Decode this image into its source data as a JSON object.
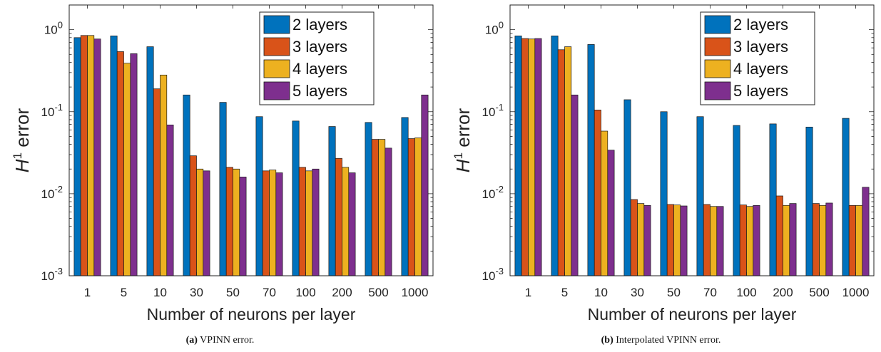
{
  "chart_data": [
    {
      "type": "bar",
      "title": "",
      "xlabel": "Number of neurons per layer",
      "ylabel_base": "H",
      "ylabel_sup": "1",
      "ylabel_word": "error",
      "yscale": "log",
      "ylim": [
        0.001,
        2
      ],
      "y_ticks": [
        {
          "value": 1,
          "mant": "10",
          "exp": "0"
        },
        {
          "value": 0.1,
          "mant": "10",
          "exp": "-1"
        },
        {
          "value": 0.01,
          "mant": "10",
          "exp": "-2"
        },
        {
          "value": 0.001,
          "mant": "10",
          "exp": "-3"
        }
      ],
      "grid": false,
      "legend_position": "top-right",
      "categories": [
        "1",
        "5",
        "10",
        "30",
        "50",
        "70",
        "100",
        "200",
        "500",
        "1000"
      ],
      "series": [
        {
          "name": "2 layers",
          "color": "#0072BD",
          "values": [
            0.8,
            0.84,
            0.62,
            0.16,
            0.13,
            0.087,
            0.077,
            0.066,
            0.074,
            0.085
          ]
        },
        {
          "name": "3 layers",
          "color": "#D95319",
          "values": [
            0.85,
            0.54,
            0.19,
            0.029,
            0.021,
            0.019,
            0.021,
            0.027,
            0.046,
            0.047
          ]
        },
        {
          "name": "4 layers",
          "color": "#EDB120",
          "values": [
            0.85,
            0.39,
            0.28,
            0.02,
            0.02,
            0.0195,
            0.019,
            0.021,
            0.046,
            0.048
          ]
        },
        {
          "name": "5 layers",
          "color": "#7E2F8E",
          "values": [
            0.77,
            0.51,
            0.069,
            0.019,
            0.016,
            0.018,
            0.02,
            0.018,
            0.036,
            0.16
          ]
        }
      ],
      "caption_label": "(a)",
      "caption_text": "VPINN error."
    },
    {
      "type": "bar",
      "title": "",
      "xlabel": "Number of neurons per layer",
      "ylabel_base": "H",
      "ylabel_sup": "1",
      "ylabel_word": "error",
      "yscale": "log",
      "ylim": [
        0.001,
        2
      ],
      "y_ticks": [
        {
          "value": 1,
          "mant": "10",
          "exp": "0"
        },
        {
          "value": 0.1,
          "mant": "10",
          "exp": "-1"
        },
        {
          "value": 0.01,
          "mant": "10",
          "exp": "-2"
        },
        {
          "value": 0.001,
          "mant": "10",
          "exp": "-3"
        }
      ],
      "grid": false,
      "legend_position": "top-right",
      "categories": [
        "1",
        "5",
        "10",
        "30",
        "50",
        "70",
        "100",
        "200",
        "500",
        "1000"
      ],
      "series": [
        {
          "name": "2 layers",
          "color": "#0072BD",
          "values": [
            0.84,
            0.84,
            0.66,
            0.14,
            0.1,
            0.087,
            0.068,
            0.071,
            0.065,
            0.083
          ]
        },
        {
          "name": "3 layers",
          "color": "#D95319",
          "values": [
            0.78,
            0.57,
            0.105,
            0.0085,
            0.0074,
            0.0074,
            0.0073,
            0.0094,
            0.0076,
            0.0072
          ]
        },
        {
          "name": "4 layers",
          "color": "#EDB120",
          "values": [
            0.77,
            0.62,
            0.058,
            0.0076,
            0.0073,
            0.007,
            0.007,
            0.0072,
            0.0072,
            0.0072
          ]
        },
        {
          "name": "5 layers",
          "color": "#7E2F8E",
          "values": [
            0.78,
            0.16,
            0.034,
            0.0072,
            0.0071,
            0.007,
            0.0072,
            0.0076,
            0.0077,
            0.012
          ]
        }
      ],
      "caption_label": "(b)",
      "caption_text": "Interpolated VPINN error."
    }
  ]
}
